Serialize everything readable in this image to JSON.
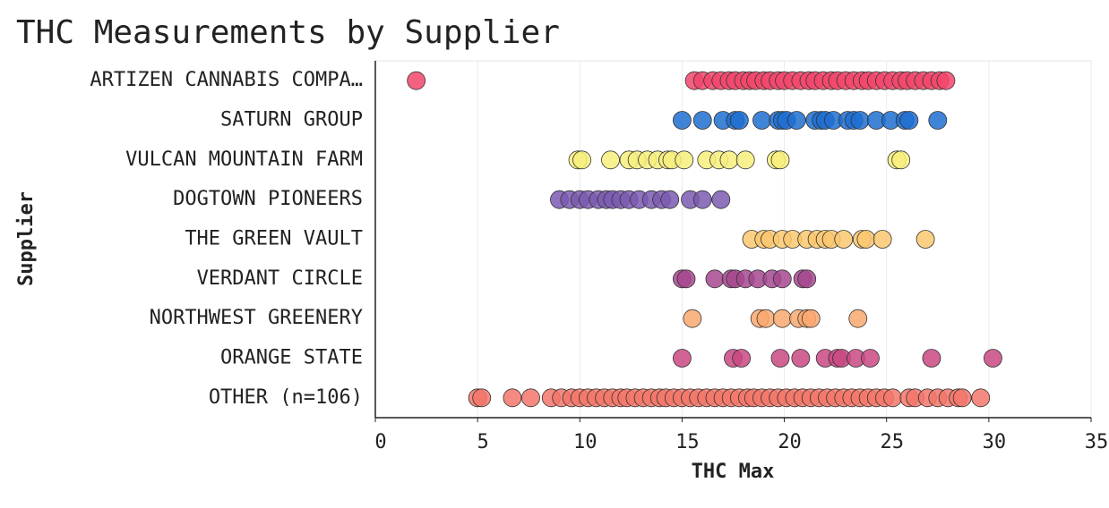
{
  "chart_data": {
    "type": "strip",
    "title": "THC Measurements by Supplier",
    "x_label": "THC Max",
    "y_label": "Supplier",
    "xlim": [
      0,
      35
    ],
    "xticks": [
      0,
      5,
      10,
      15,
      20,
      25,
      30,
      35
    ],
    "grid": true,
    "series": [
      {
        "name": "ARTIZEN CANNABIS COMPA…",
        "color": "#f2456b",
        "values": [
          2.0,
          15.6,
          16.0,
          16.5,
          16.9,
          17.3,
          17.6,
          18.0,
          18.3,
          18.6,
          19.0,
          19.3,
          19.7,
          20.0,
          20.4,
          20.8,
          21.2,
          21.5,
          21.9,
          22.3,
          22.6,
          23.0,
          23.4,
          23.8,
          24.1,
          24.5,
          24.9,
          25.3,
          25.7,
          26.0,
          26.4,
          26.8,
          27.2,
          27.6,
          27.9
        ]
      },
      {
        "name": "SATURN GROUP",
        "color": "#1f6fd1",
        "values": [
          15.0,
          16.0,
          17.0,
          17.6,
          17.8,
          18.9,
          19.7,
          19.9,
          20.1,
          20.6,
          21.5,
          21.8,
          22.0,
          22.4,
          23.1,
          23.4,
          23.7,
          24.5,
          25.2,
          25.9,
          26.1,
          27.5
        ]
      },
      {
        "name": "VULCAN MOUNTAIN FARM",
        "color": "#f7ef7c",
        "values": [
          9.9,
          10.1,
          11.5,
          12.4,
          12.8,
          13.3,
          13.8,
          14.3,
          14.5,
          15.1,
          16.2,
          16.8,
          17.3,
          18.1,
          19.6,
          19.8,
          25.5,
          25.7
        ]
      },
      {
        "name": "DOGTOWN PIONEERS",
        "color": "#7b5ab2",
        "values": [
          9.0,
          9.5,
          10.0,
          10.4,
          10.9,
          11.3,
          11.6,
          12.0,
          12.4,
          12.9,
          13.5,
          14.0,
          14.4,
          15.4,
          16.0,
          16.9
        ]
      },
      {
        "name": "THE GREEN VAULT",
        "color": "#fbc86f",
        "values": [
          18.4,
          19.0,
          19.3,
          19.9,
          20.4,
          21.1,
          21.6,
          22.0,
          22.3,
          22.9,
          23.8,
          24.0,
          24.8,
          26.9
        ]
      },
      {
        "name": "VERDANT CIRCLE",
        "color": "#a6488f",
        "values": [
          15.0,
          15.2,
          16.6,
          17.4,
          17.6,
          18.1,
          18.7,
          19.4,
          19.9,
          20.9,
          21.1
        ]
      },
      {
        "name": "NORTHWEST GREENERY",
        "color": "#f9a86e",
        "values": [
          15.5,
          18.8,
          19.1,
          19.9,
          20.7,
          21.1,
          21.3,
          23.6
        ]
      },
      {
        "name": "ORANGE STATE",
        "color": "#c94882",
        "values": [
          15.0,
          17.5,
          17.9,
          19.8,
          20.8,
          22.0,
          22.6,
          22.8,
          23.5,
          24.2,
          27.2,
          30.2
        ]
      },
      {
        "name": "OTHER (n=106)",
        "color": "#f3756a",
        "values": [
          5.0,
          5.2,
          6.7,
          7.6,
          8.6,
          9.1,
          9.6,
          10.0,
          10.4,
          10.8,
          11.2,
          11.6,
          12.0,
          12.3,
          12.7,
          13.1,
          13.5,
          13.9,
          14.2,
          14.6,
          15.0,
          15.4,
          15.8,
          16.2,
          16.6,
          17.0,
          17.4,
          17.8,
          18.2,
          18.5,
          18.9,
          19.3,
          19.7,
          20.1,
          20.5,
          20.9,
          21.3,
          21.7,
          22.1,
          22.5,
          22.9,
          23.3,
          23.7,
          24.1,
          24.5,
          24.9,
          25.3,
          26.1,
          26.4,
          27.0,
          27.5,
          28.0,
          28.5,
          28.7,
          29.6
        ]
      }
    ]
  }
}
